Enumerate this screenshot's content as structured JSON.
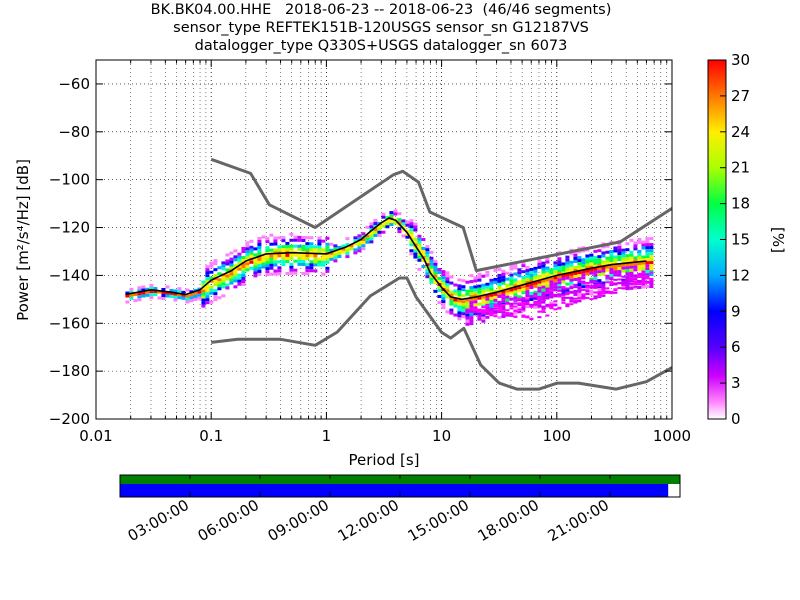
{
  "title_lines": [
    "BK.BK04.00.HHE   2018-06-23 -- 2018-06-23  (46/46 segments)",
    "sensor_type REFTEK151B-120USGS sensor_sn G12187VS",
    "datalogger_type Q330S+USGS datalogger_sn 6073"
  ],
  "colors": {
    "model_curve": "#666666",
    "mean_curve": "#000000",
    "data_coverage": "#0000ff",
    "trace_coverage": "#008000",
    "grid": "#000000"
  },
  "chart_data": {
    "type": "heatmap",
    "xlabel": "Period [s]",
    "ylabel": "Power [m²/s⁴/Hz] [dB]",
    "xscale": "log",
    "xlim": [
      0.01,
      1000
    ],
    "ylim": [
      -200,
      -50
    ],
    "x_ticks": [
      0.01,
      0.1,
      1,
      10,
      100,
      1000
    ],
    "x_tick_labels": [
      "0.01",
      "0.1",
      "1",
      "10",
      "100",
      "1000"
    ],
    "y_ticks": [
      -200,
      -180,
      -160,
      -140,
      -120,
      -100,
      -80,
      -60
    ],
    "y_tick_labels": [
      "−200",
      "−180",
      "−160",
      "−140",
      "−120",
      "−100",
      "−80",
      "−60"
    ],
    "grid": true,
    "colorbar": {
      "label": "[%]",
      "range": [
        0,
        30
      ],
      "ticks": [
        0,
        3,
        6,
        9,
        12,
        15,
        18,
        21,
        24,
        27,
        30
      ],
      "tick_labels": [
        "0",
        "3",
        "6",
        "9",
        "12",
        "15",
        "18",
        "21",
        "24",
        "27",
        "30"
      ]
    },
    "series": [
      {
        "role": "new_high_noise_model",
        "x": [
          0.1,
          0.22,
          0.32,
          0.8,
          3.8,
          4.6,
          6.3,
          7.9,
          15.4,
          20,
          354.8,
          1000
        ],
        "y": [
          -91.5,
          -97.4,
          -110.5,
          -120,
          -98,
          -96.5,
          -101,
          -113.5,
          -120,
          -138,
          -126,
          -112
        ]
      },
      {
        "role": "new_low_noise_model",
        "x": [
          0.1,
          0.17,
          0.4,
          0.8,
          1.24,
          2.4,
          4.3,
          5,
          6,
          10,
          12,
          15.6,
          21.9,
          31.6,
          45,
          70,
          101,
          154,
          328,
          600,
          1000
        ],
        "y": [
          -168,
          -166.7,
          -166.7,
          -169.2,
          -163.7,
          -148.6,
          -141.1,
          -141.1,
          -149,
          -163.8,
          -166.2,
          -162.1,
          -177.5,
          -185,
          -187.5,
          -187.5,
          -185,
          -185,
          -187.5,
          -184.4,
          -178.5
        ]
      },
      {
        "role": "mode_curve",
        "x": [
          0.018,
          0.03,
          0.045,
          0.06,
          0.08,
          0.1,
          0.15,
          0.2,
          0.3,
          0.5,
          1,
          1.5,
          2,
          2.5,
          3,
          3.5,
          4,
          5,
          6,
          7,
          8,
          10,
          12,
          15,
          20,
          30,
          50,
          100,
          200,
          300,
          600
        ],
        "y": [
          -148,
          -146,
          -147,
          -148,
          -146,
          -142,
          -138,
          -134,
          -131,
          -130.5,
          -131,
          -128,
          -125,
          -121,
          -118,
          -116,
          -117,
          -122,
          -128,
          -133,
          -139,
          -145,
          -149,
          -150,
          -149,
          -147,
          -144,
          -140,
          -137,
          -135.5,
          -134
        ]
      }
    ]
  },
  "timeline": {
    "tick_labels": [
      "03:00:00",
      "06:00:00",
      "09:00:00",
      "12:00:00",
      "15:00:00",
      "18:00:00",
      "21:00:00"
    ],
    "trace_coverage_fraction": 1.0,
    "data_coverage_fraction": 0.979
  }
}
